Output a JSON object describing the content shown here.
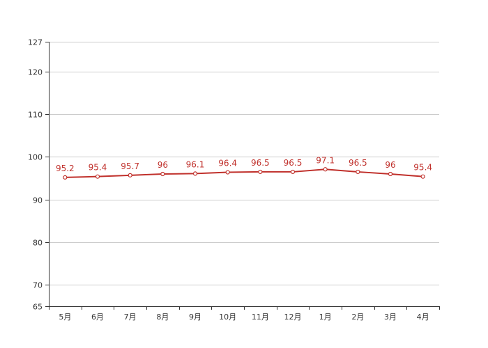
{
  "chart_data": {
    "type": "line",
    "title": "",
    "xlabel": "",
    "ylabel": "",
    "categories": [
      "5月",
      "6月",
      "7月",
      "8月",
      "9月",
      "10月",
      "11月",
      "12月",
      "1月",
      "2月",
      "3月",
      "4月"
    ],
    "series": [
      {
        "values": [
          95.2,
          95.4,
          95.7,
          96,
          96.1,
          96.4,
          96.5,
          96.5,
          97.1,
          96.5,
          96,
          95.4
        ],
        "labels": [
          "95.2",
          "95.4",
          "95.7",
          "96",
          "96.1",
          "96.4",
          "96.5",
          "96.5",
          "97.1",
          "96.5",
          "96",
          "95.4"
        ],
        "color": "#c0302b"
      }
    ],
    "ylim": [
      65,
      127
    ],
    "yticks": [
      65,
      70,
      80,
      90,
      100,
      110,
      120,
      127
    ],
    "ytick_labels": [
      "65",
      "70",
      "80",
      "90",
      "100",
      "110",
      "120",
      "127"
    ],
    "grid": true,
    "legend": "none",
    "colors": {
      "line": "#c0302b",
      "grid": "#cccccc",
      "axis": "#333333"
    }
  }
}
